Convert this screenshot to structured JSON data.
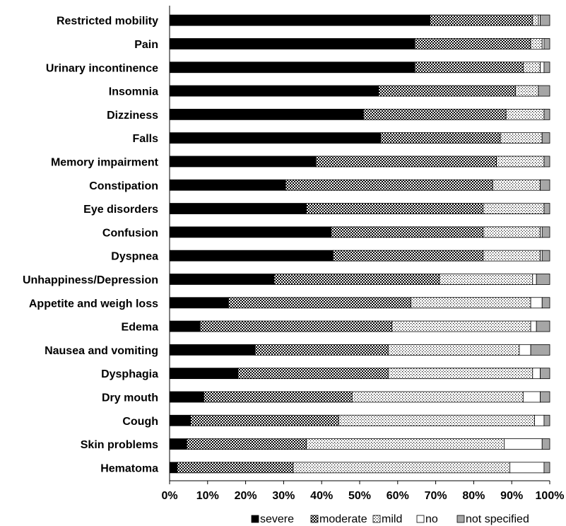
{
  "chart_data": {
    "type": "bar",
    "orientation": "horizontal",
    "stacked": true,
    "percent_stacked": true,
    "categories": [
      "Restricted mobility",
      "Pain",
      "Urinary incontinence",
      "Insomnia",
      "Dizziness",
      "Falls",
      "Memory impairment",
      "Constipation",
      "Eye disorders",
      "Confusion",
      "Dyspnea",
      "Unhappiness/Depression",
      "Appetite and weigh loss",
      "Edema",
      "Nausea and vomiting",
      "Dysphagia",
      "Dry mouth",
      "Cough",
      "Skin problems",
      "Hematoma"
    ],
    "series": [
      {
        "name": "severe",
        "pattern": "solid",
        "values": [
          68.5,
          64.5,
          64.5,
          55,
          51,
          55.5,
          38.5,
          30.5,
          36,
          42.5,
          43,
          27.5,
          15.5,
          8,
          22.5,
          18,
          9,
          5.5,
          4.5,
          2
        ]
      },
      {
        "name": "moderate",
        "pattern": "checker",
        "values": [
          27,
          30.5,
          28.5,
          36,
          37.5,
          31.5,
          47.5,
          54.5,
          46.5,
          40,
          39.5,
          43.5,
          48,
          50.5,
          35,
          39.5,
          39,
          39,
          31.5,
          30.5
        ]
      },
      {
        "name": "mild",
        "pattern": "dots",
        "values": [
          1.5,
          3,
          4.5,
          6,
          10,
          11,
          12.5,
          12.5,
          16,
          15,
          15,
          24.5,
          31.5,
          36.5,
          34.5,
          38,
          45,
          51.5,
          52,
          57
        ]
      },
      {
        "name": "no",
        "pattern": "white",
        "values": [
          0.5,
          0.5,
          1,
          0,
          0,
          0,
          0,
          0,
          0,
          0.5,
          0.5,
          1,
          3,
          1.5,
          3,
          2,
          4.5,
          2.5,
          10,
          9
        ]
      },
      {
        "name": "not specified",
        "pattern": "gray",
        "values": [
          2.5,
          1.5,
          1.5,
          3,
          1.5,
          2,
          1.5,
          2.5,
          1.5,
          2,
          2,
          3.5,
          2,
          3.5,
          5,
          2.5,
          2.5,
          1.5,
          2,
          1.5
        ]
      }
    ],
    "x_ticks": [
      "0%",
      "10%",
      "20%",
      "30%",
      "40%",
      "50%",
      "60%",
      "70%",
      "80%",
      "90%",
      "100%"
    ],
    "xlim": [
      0,
      100
    ],
    "grid": false,
    "legend_position": "bottom"
  }
}
